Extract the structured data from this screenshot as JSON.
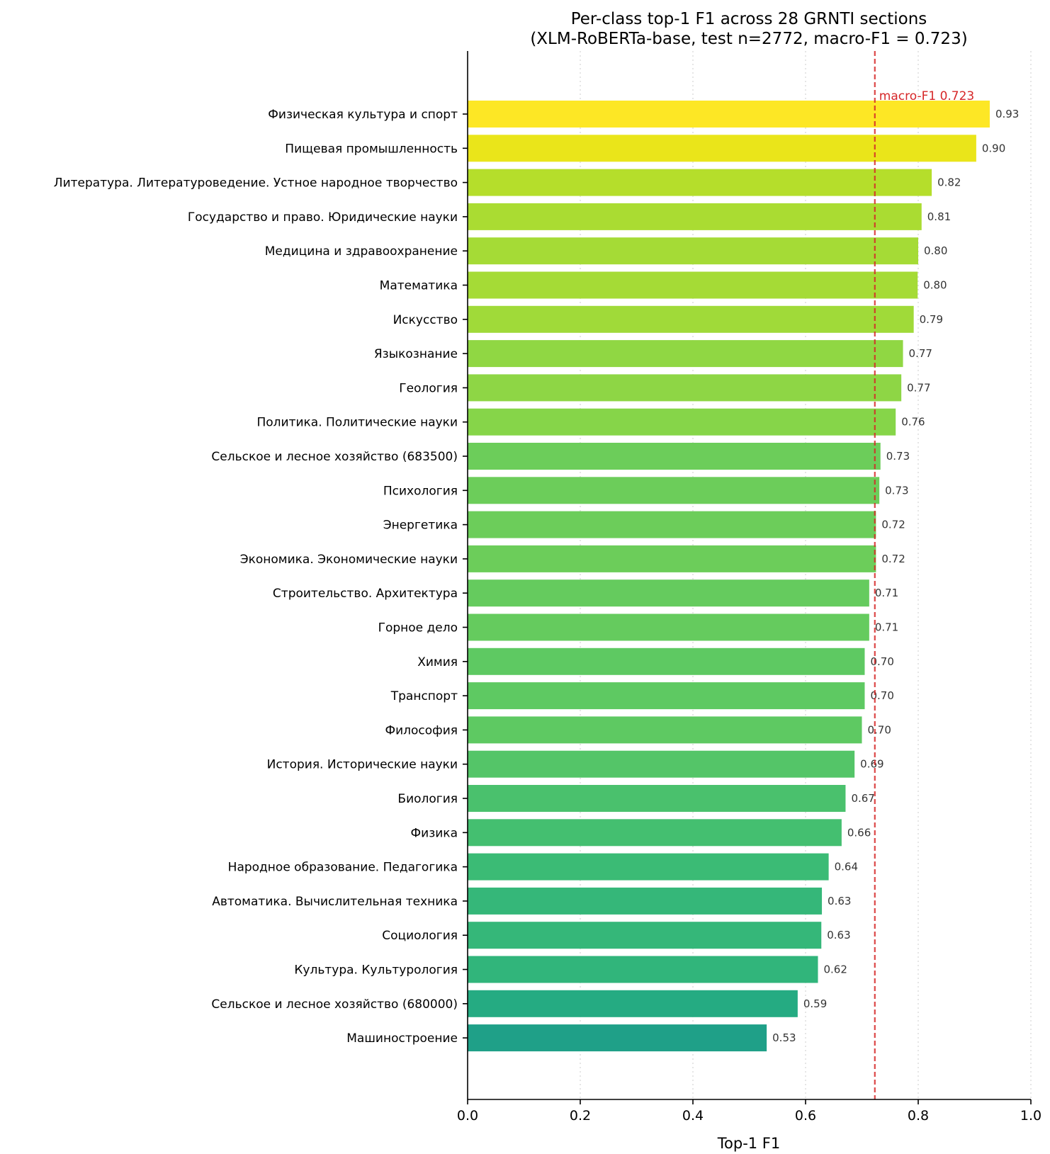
{
  "chart_data": {
    "type": "bar",
    "orientation": "horizontal",
    "title": "Per-class top-1 F1 across 28 GRNTI sections",
    "subtitle": "(XLM-RoBERTa-base, test n=2772, macro-F1 = 0.723)",
    "xlabel": "Top-1 F1",
    "ylabel": "",
    "xlim": [
      0,
      1
    ],
    "xticks": [
      "0.0",
      "0.2",
      "0.4",
      "0.6",
      "0.8",
      "1.0"
    ],
    "grid": "vertical dotted",
    "reference_line": {
      "value": 0.723,
      "label": "macro-F1 0.723",
      "color": "#d62728"
    },
    "categories": [
      "Физическая культура и спорт",
      "Пищевая промышленность",
      "Литература. Литературоведение. Устное народное творчество",
      "Государство и право. Юридические науки",
      "Медицина и здравоохранение",
      "Математика",
      "Искусство",
      "Языкознание",
      "Геология",
      "Политика. Политические науки",
      "Сельское и лесное хозяйство (683500)",
      "Психология",
      "Энергетика",
      "Экономика. Экономические науки",
      "Строительство. Архитектура",
      "Горное дело",
      "Химия",
      "Транспорт",
      "Философия",
      "История. Исторические науки",
      "Биология",
      "Физика",
      "Народное образование. Педагогика",
      "Автоматика. Вычислительная техника",
      "Социология",
      "Культура. Культурология",
      "Сельское и лесное хозяйство (680000)",
      "Машиностроение"
    ],
    "values": [
      0.927,
      0.903,
      0.824,
      0.806,
      0.8,
      0.799,
      0.792,
      0.773,
      0.77,
      0.76,
      0.733,
      0.731,
      0.725,
      0.725,
      0.713,
      0.713,
      0.705,
      0.705,
      0.7,
      0.687,
      0.671,
      0.664,
      0.641,
      0.629,
      0.628,
      0.622,
      0.586,
      0.531
    ],
    "value_labels": [
      "0.93",
      "0.90",
      "0.82",
      "0.81",
      "0.80",
      "0.80",
      "0.79",
      "0.77",
      "0.77",
      "0.76",
      "0.73",
      "0.73",
      "0.72",
      "0.72",
      "0.71",
      "0.71",
      "0.70",
      "0.70",
      "0.70",
      "0.69",
      "0.67",
      "0.66",
      "0.64",
      "0.63",
      "0.63",
      "0.62",
      "0.59",
      "0.53"
    ],
    "colors": [
      "#fde725",
      "#eae51a",
      "#b5de2b",
      "#aadc32",
      "#a5db36",
      "#a5db36",
      "#a0da39",
      "#90d743",
      "#8ed645",
      "#86d549",
      "#6ccd5a",
      "#6ccd5a",
      "#6ccd5a",
      "#6ccd5a",
      "#65cb5e",
      "#65cb5e",
      "#5ec962",
      "#5ec962",
      "#5ec962",
      "#54c568",
      "#4ac16d",
      "#44bf70",
      "#3bbb75",
      "#35b779",
      "#35b779",
      "#31b57b",
      "#25ab82",
      "#1fa088"
    ]
  }
}
